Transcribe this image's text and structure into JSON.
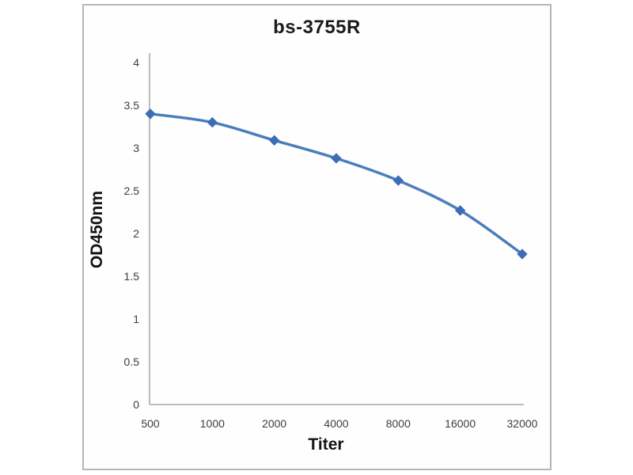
{
  "frame": {
    "border_color": "#b6b6b6",
    "background": "#fefefe"
  },
  "chart_data": {
    "type": "line",
    "title": "bs-3755R",
    "xlabel": "Titer",
    "ylabel": "OD450nm",
    "categories": [
      "500",
      "1000",
      "2000",
      "4000",
      "8000",
      "16000",
      "32000"
    ],
    "series": [
      {
        "name": "bs-3755R",
        "values": [
          3.4,
          3.3,
          3.09,
          2.88,
          2.62,
          2.27,
          1.76
        ]
      }
    ],
    "ylim": [
      0,
      4
    ],
    "yticks": [
      0,
      0.5,
      1,
      1.5,
      2,
      2.5,
      3,
      3.5,
      4
    ],
    "grid": false,
    "legend": "none",
    "smooth": true,
    "marker_shape": "diamond",
    "line_color": "#4a7ebb",
    "marker_color": "#3d6eb5",
    "axis_color": "#a6a6a6",
    "tick_label_color": "#3d3d3d"
  }
}
